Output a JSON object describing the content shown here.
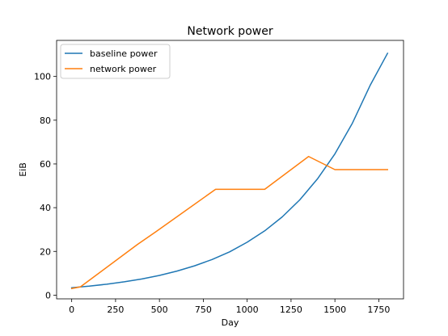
{
  "chart_data": {
    "type": "line",
    "title": "Network power",
    "xlabel": "Day",
    "ylabel": "EiB",
    "xlim": [
      -86,
      1891
    ],
    "ylim": [
      -1.7,
      116.5
    ],
    "xticks": [
      0,
      250,
      500,
      750,
      1000,
      1250,
      1500,
      1750
    ],
    "yticks": [
      0,
      20,
      40,
      60,
      80,
      100
    ],
    "grid": false,
    "legend_position": "top-left",
    "series": [
      {
        "name": "baseline power",
        "color": "#1f77b4",
        "x": [
          0,
          100,
          200,
          300,
          400,
          500,
          600,
          700,
          800,
          900,
          1000,
          1100,
          1200,
          1300,
          1400,
          1500,
          1600,
          1700,
          1800
        ],
        "y": [
          3.4,
          4.1,
          5.0,
          6.1,
          7.4,
          9.0,
          11.0,
          13.4,
          16.3,
          19.8,
          24.2,
          29.4,
          35.8,
          43.6,
          53.1,
          64.6,
          78.7,
          95.8,
          110.6
        ]
      },
      {
        "name": "network power",
        "color": "#ff7f0e",
        "x": [
          0,
          50,
          375,
          480,
          820,
          1100,
          1350,
          1500,
          1800
        ],
        "y": [
          3.0,
          3.8,
          23.2,
          29.0,
          48.4,
          48.4,
          63.4,
          57.4,
          57.4
        ]
      }
    ]
  }
}
